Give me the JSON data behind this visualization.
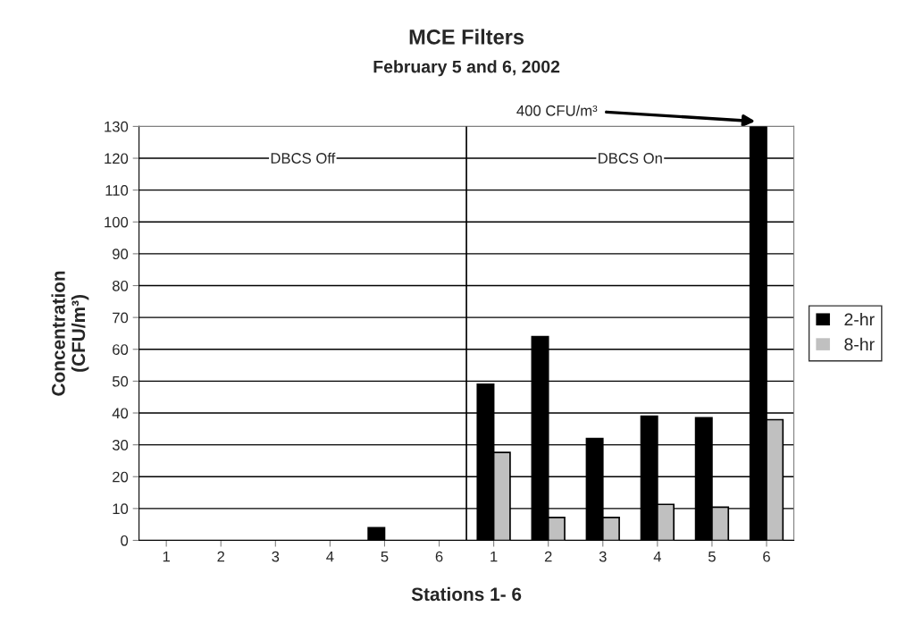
{
  "chart_data": {
    "type": "bar",
    "title": "MCE Filters",
    "subtitle": "February 5 and 6, 2002",
    "xlabel": "Stations 1- 6",
    "ylabel": "Concentration\n(CFU/m³)",
    "categories": [
      "1",
      "2",
      "3",
      "4",
      "5",
      "6",
      "1",
      "2",
      "3",
      "4",
      "5",
      "6"
    ],
    "series": [
      {
        "name": "2-hr",
        "color": "#000000",
        "values": [
          0,
          0,
          0,
          0,
          4,
          0,
          49,
          64,
          32,
          39,
          38.5,
          130
        ]
      },
      {
        "name": "8-hr",
        "color": "#c0c0c0",
        "values": [
          0,
          0,
          0,
          0,
          0,
          0,
          27.6,
          7.2,
          7.2,
          11.3,
          10.4,
          37.9
        ]
      }
    ],
    "ylim": [
      0,
      130
    ],
    "yticks": [
      0,
      10,
      20,
      30,
      40,
      50,
      60,
      70,
      80,
      90,
      100,
      110,
      120,
      130
    ],
    "grid": "y",
    "legend": "right",
    "annotations": [
      "DBCS Off",
      "DBCS On",
      "400 CFU/m³"
    ]
  }
}
